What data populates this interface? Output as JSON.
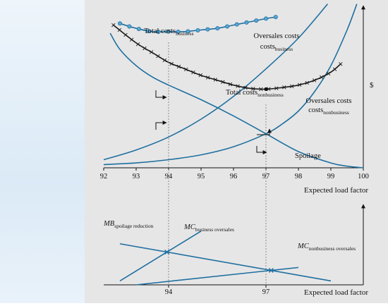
{
  "chart_data": [
    {
      "type": "line",
      "xlabel": "Expected load factor",
      "ylabel": "$",
      "xlim": [
        92,
        100
      ],
      "x_ticks": [
        "92",
        "93",
        "94",
        "95",
        "96",
        "97",
        "98",
        "99",
        "100"
      ],
      "x_tick_values": [
        92,
        93,
        94,
        95,
        96,
        97,
        98,
        99,
        100
      ],
      "ylim": [
        0,
        100
      ],
      "series": [
        {
          "name": "Total costs",
          "subscript": "business",
          "color": "#1f6f9e",
          "marker": "circle",
          "x": [
            92.5,
            93.0,
            93.5,
            94.0,
            94.5,
            95.0,
            95.5,
            96.0,
            96.5,
            97.0,
            97.3
          ],
          "y": [
            89,
            86,
            84,
            84,
            84,
            85,
            86,
            88,
            90,
            92,
            93
          ]
        },
        {
          "name": "Total costs",
          "subscript": "nonbusiness",
          "color": "#1a1a1a",
          "marker": "x",
          "x": [
            92.3,
            93.0,
            93.5,
            94.0,
            94.5,
            95.0,
            95.5,
            96.0,
            96.5,
            97.0,
            97.5,
            98.0,
            98.5,
            99.0,
            99.3
          ],
          "y": [
            88,
            77,
            71,
            65,
            61,
            57,
            54,
            51,
            49,
            48.5,
            49.5,
            51,
            54,
            59,
            64
          ]
        },
        {
          "name": "Oversales costs",
          "subscript": "business",
          "color": "#1f6f9e",
          "marker": "none",
          "x": [
            92,
            93,
            94,
            95,
            96,
            97,
            98,
            98.9
          ],
          "y": [
            5,
            11,
            19,
            30,
            44,
            61,
            80,
            101
          ]
        },
        {
          "name": "Oversales costs",
          "subscript": "nonbusiness",
          "color": "#1f6f9e",
          "marker": "none",
          "x": [
            92,
            93,
            94,
            95,
            96,
            97,
            97.5,
            98,
            98.5,
            99,
            99.5,
            99.8
          ],
          "y": [
            2,
            3,
            5,
            8,
            13,
            21,
            27,
            35,
            47,
            63,
            85,
            101
          ]
        },
        {
          "name": "Spoilage",
          "subscript": "",
          "color": "#1f6f9e",
          "marker": "none",
          "x": [
            92.2,
            92.5,
            93.0,
            93.5,
            94.0,
            95.0,
            96.0,
            97.0,
            98.0,
            99.0,
            99.5,
            100.0
          ],
          "y": [
            83,
            73,
            63,
            56,
            51,
            42,
            32,
            21,
            10,
            3,
            1,
            0
          ]
        }
      ],
      "annotations": {
        "optimal_business_x": 94,
        "optimal_nonbusiness_x": 97
      }
    },
    {
      "type": "line",
      "xlabel": "Expected load factor",
      "xlim": [
        92,
        100
      ],
      "x_ticks": [
        "94",
        "97"
      ],
      "x_tick_values": [
        94,
        97
      ],
      "ylim": [
        0,
        100
      ],
      "series": [
        {
          "name": "MB",
          "subscript": "spoilage reduction",
          "color": "#1f6f9e",
          "x": [
            92.5,
            99.0
          ],
          "y": [
            52,
            5
          ]
        },
        {
          "name": "MC",
          "subscript": "business oversales",
          "color": "#1f6f9e",
          "x": [
            92.5,
            95.0
          ],
          "y": [
            5,
            68
          ]
        },
        {
          "name": "MC",
          "subscript": "nonbusiness oversales",
          "color": "#1f6f9e",
          "x": [
            93.0,
            98.0
          ],
          "y": [
            0,
            22
          ]
        }
      ]
    }
  ]
}
